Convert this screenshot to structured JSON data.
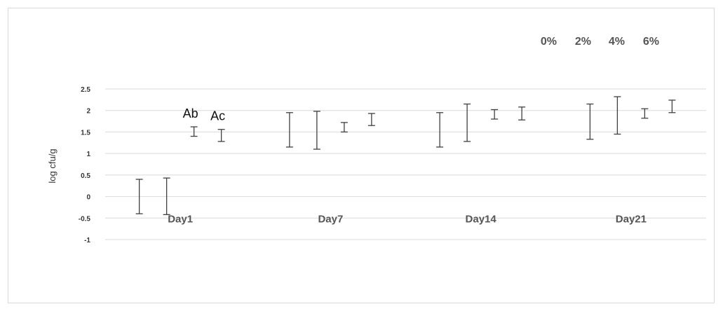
{
  "chart_data": {
    "type": "error_bar",
    "ylabel": "log cfu/g",
    "ylim": [
      -1,
      2.5
    ],
    "yticks": [
      -1,
      -0.5,
      0,
      0.5,
      1,
      1.5,
      2,
      2.5
    ],
    "ytick_labels": [
      "-1",
      "-0.5",
      "0",
      "0.5",
      "1",
      "1.5",
      "2",
      "2.5"
    ],
    "categories": [
      "Day1",
      "Day7",
      "Day14",
      "Day21"
    ],
    "legend": [
      "0%",
      "2%",
      "4%",
      "6%"
    ],
    "legend_position": "top-right",
    "grid": true,
    "series": [
      {
        "name": "0%",
        "low": [
          -0.4,
          1.15,
          1.15,
          1.33
        ],
        "high": [
          0.4,
          1.95,
          1.95,
          2.15
        ]
      },
      {
        "name": "2%",
        "low": [
          -0.42,
          1.1,
          1.28,
          1.45
        ],
        "high": [
          0.43,
          1.98,
          2.15,
          2.32
        ]
      },
      {
        "name": "4%",
        "low": [
          1.4,
          1.5,
          1.8,
          1.82
        ],
        "high": [
          1.62,
          1.72,
          2.02,
          2.04
        ]
      },
      {
        "name": "6%",
        "low": [
          1.28,
          1.65,
          1.78,
          1.95
        ],
        "high": [
          1.56,
          1.93,
          2.08,
          2.24
        ]
      }
    ],
    "annotations": [
      {
        "text": "Ab",
        "category": "Day1",
        "series": "4%"
      },
      {
        "text": "Ac",
        "category": "Day1",
        "series": "6%"
      }
    ]
  }
}
